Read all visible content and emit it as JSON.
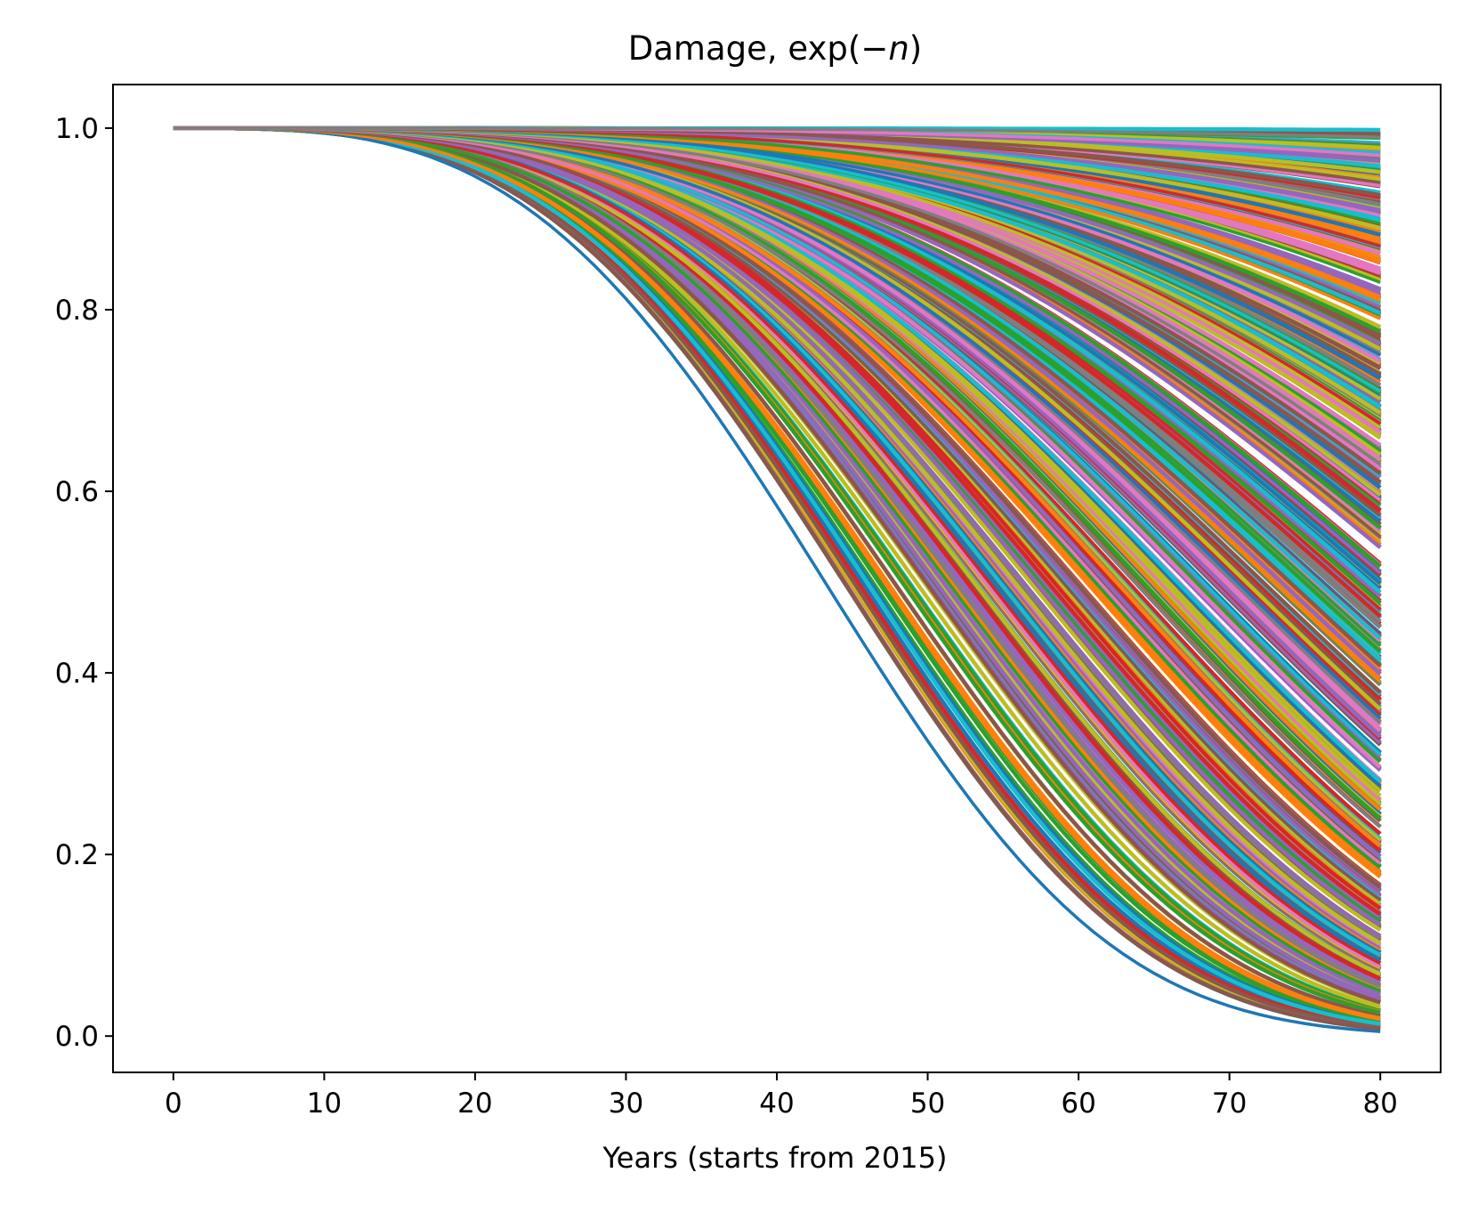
{
  "chart_data": {
    "type": "line",
    "title": "Damage, exp(−n)",
    "title_parts": {
      "prefix": "Damage, exp(−",
      "variable": "n",
      "suffix": ")"
    },
    "xlabel": "Years (starts from 2015)",
    "ylabel": "",
    "xlim": [
      -4,
      84
    ],
    "ylim": [
      -0.04,
      1.048
    ],
    "x_ticks": [
      0,
      10,
      20,
      30,
      40,
      50,
      60,
      70,
      80
    ],
    "x_tick_labels": [
      "0",
      "10",
      "20",
      "30",
      "40",
      "50",
      "60",
      "70",
      "80"
    ],
    "y_ticks": [
      0.0,
      0.2,
      0.4,
      0.6,
      0.8,
      1.0
    ],
    "y_tick_labels": [
      "0.0",
      "0.2",
      "0.4",
      "0.6",
      "0.8",
      "1.0"
    ],
    "grid": false,
    "legend": "none",
    "colors": [
      "#1f77b4",
      "#ff7f0e",
      "#2ca02c",
      "#d62728",
      "#9467bd",
      "#8c564b",
      "#e377c2",
      "#7f7f7f",
      "#bcbd22",
      "#17becf"
    ],
    "x_range": [
      0,
      80
    ],
    "series_model": "y = exp(-(t/tau)^k)",
    "series": [
      {
        "values_at_x80": 0.005
      },
      {
        "values_at_x80": 0.02
      },
      {
        "values_at_x80": 0.05
      },
      {
        "values_at_x80": 0.08
      },
      {
        "values_at_x80": 0.11
      },
      {
        "values_at_x80": 0.15
      },
      {
        "values_at_x80": 0.19
      },
      {
        "values_at_x80": 0.23
      },
      {
        "values_at_x80": 0.27
      },
      {
        "values_at_x80": 0.31
      },
      {
        "values_at_x80": 0.35
      },
      {
        "values_at_x80": 0.39
      },
      {
        "values_at_x80": 0.43
      },
      {
        "values_at_x80": 0.47
      },
      {
        "values_at_x80": 0.51
      },
      {
        "values_at_x80": 0.55
      },
      {
        "values_at_x80": 0.59
      },
      {
        "values_at_x80": 0.63
      },
      {
        "values_at_x80": 0.67
      },
      {
        "values_at_x80": 0.71
      },
      {
        "values_at_x80": 0.75
      },
      {
        "values_at_x80": 0.79
      },
      {
        "values_at_x80": 0.83
      },
      {
        "values_at_x80": 0.87
      },
      {
        "values_at_x80": 0.91
      },
      {
        "values_at_x80": 0.94
      },
      {
        "values_at_x80": 0.97
      },
      {
        "values_at_x80": 0.99
      }
    ]
  }
}
